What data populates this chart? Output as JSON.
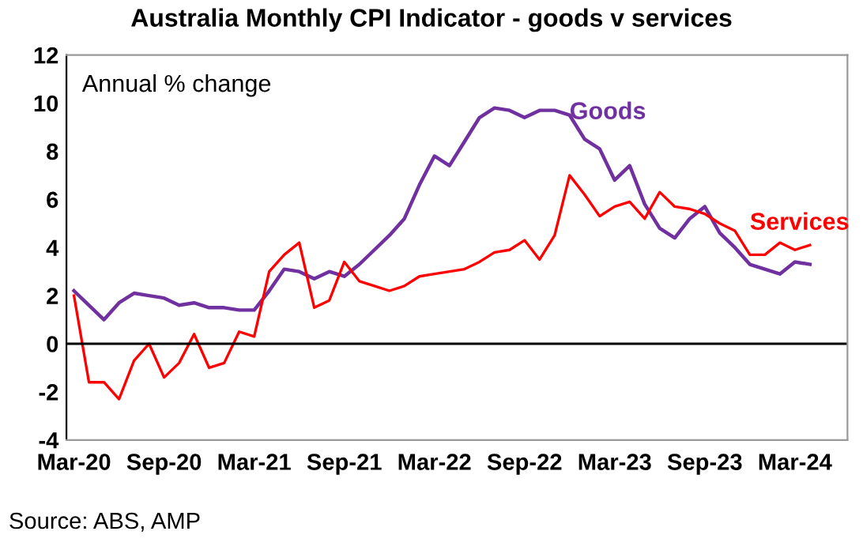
{
  "chart_data": {
    "type": "line",
    "title": "Australia Monthly CPI Indicator - goods v services",
    "ylabel": "Annual % change",
    "categories": [
      "Mar-20",
      null,
      null,
      null,
      null,
      null,
      "Sep-20",
      null,
      null,
      null,
      null,
      null,
      "Mar-21",
      null,
      null,
      null,
      null,
      null,
      "Sep-21",
      null,
      null,
      null,
      null,
      null,
      "Mar-22",
      null,
      null,
      null,
      null,
      null,
      "Sep-22",
      null,
      null,
      null,
      null,
      null,
      "Mar-23",
      null,
      null,
      null,
      null,
      null,
      "Sep-23",
      null,
      null,
      null,
      null,
      null,
      "Mar-24",
      null
    ],
    "series": [
      {
        "name": "Goods",
        "color": "#7030a0",
        "values": [
          2.2,
          1.6,
          1.0,
          1.7,
          2.1,
          2.0,
          1.9,
          1.6,
          1.7,
          1.5,
          1.5,
          1.4,
          1.4,
          2.2,
          3.1,
          3.0,
          2.7,
          3.0,
          2.8,
          3.3,
          3.9,
          4.5,
          5.2,
          6.6,
          7.8,
          7.4,
          8.4,
          9.4,
          9.8,
          9.7,
          9.4,
          9.7,
          9.7,
          9.5,
          8.5,
          8.1,
          6.8,
          7.4,
          5.8,
          4.8,
          4.4,
          5.2,
          5.7,
          4.6,
          4.0,
          3.3,
          3.1,
          2.9,
          3.4,
          3.3
        ]
      },
      {
        "name": "Services",
        "color": "#ff0000",
        "values": [
          2.0,
          -1.6,
          -1.6,
          -2.3,
          -0.7,
          0.0,
          -1.4,
          -0.8,
          0.4,
          -1.0,
          -0.8,
          0.5,
          0.3,
          3.0,
          3.7,
          4.2,
          1.5,
          1.8,
          3.4,
          2.6,
          2.4,
          2.2,
          2.4,
          2.8,
          2.9,
          3.0,
          3.1,
          3.4,
          3.8,
          3.9,
          4.3,
          3.5,
          4.5,
          7.0,
          6.2,
          5.3,
          5.7,
          5.9,
          5.2,
          6.3,
          5.7,
          5.6,
          5.4,
          5.0,
          4.7,
          3.7,
          3.7,
          4.2,
          3.9,
          4.1
        ]
      }
    ],
    "ylim": [
      -4,
      12
    ],
    "yticks": [
      -4,
      -2,
      0,
      2,
      4,
      6,
      8,
      10,
      12
    ],
    "grid": false,
    "legend": false,
    "marker": "none",
    "line_style": "solid",
    "ref_lines": [
      {
        "axis": "y",
        "value": 0,
        "color": "#000000"
      }
    ],
    "annotations": [
      "Source: ABS, AMP"
    ]
  }
}
